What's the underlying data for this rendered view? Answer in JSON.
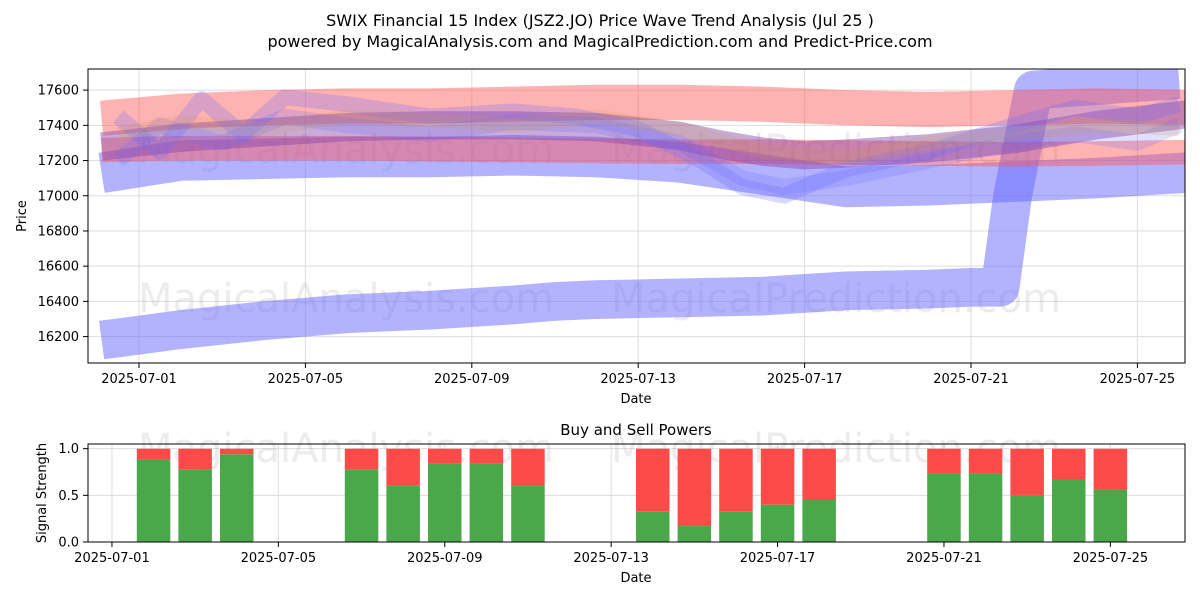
{
  "chart_data": [
    {
      "type": "area",
      "title": "SWIX Financial 15 Index (JSZ2.JO) Price Wave Trend Analysis (Jul 25 )",
      "subtitle": "powered by MagicalAnalysis.com and MagicalPrediction.com and Predict-Price.com",
      "xlabel": "Date",
      "ylabel": "Price",
      "ylim": [
        16050,
        17720
      ],
      "x_ticks": [
        "2025-07-01",
        "2025-07-05",
        "2025-07-09",
        "2025-07-13",
        "2025-07-17",
        "2025-07-21",
        "2025-07-25"
      ],
      "y_ticks": [
        16200,
        16400,
        16600,
        16800,
        17000,
        17200,
        17400,
        17600
      ],
      "watermarks": [
        "MagicalAnalysis.com",
        "MagicalPrediction.com"
      ],
      "bands": [
        {
          "name": "low wave",
          "color": "#6666ff",
          "alpha": 0.5,
          "x": [
            -0.9,
            1,
            3,
            5,
            7,
            9,
            10,
            11,
            13,
            15,
            17,
            19,
            20,
            20.7,
            21,
            21.5,
            25
          ],
          "center": [
            16180,
            16240,
            16290,
            16330,
            16350,
            16380,
            16400,
            16410,
            16420,
            16430,
            16460,
            16470,
            16480,
            16480,
            17000,
            17600,
            17660
          ],
          "width": 220
        },
        {
          "name": "mid blue wave",
          "color": "#6666ff",
          "alpha": 0.5,
          "x": [
            -0.9,
            1,
            3,
            5,
            7,
            9,
            11,
            13,
            15,
            17,
            19,
            21,
            23,
            25.8
          ],
          "center": [
            17130,
            17200,
            17210,
            17220,
            17220,
            17230,
            17220,
            17190,
            17120,
            17050,
            17060,
            17080,
            17100,
            17140
          ],
          "width": 230
        },
        {
          "name": "red wave upper",
          "color": "#ff5555",
          "alpha": 0.45,
          "x": [
            -0.9,
            1,
            3,
            5,
            7,
            9,
            11,
            13,
            15,
            17,
            19,
            21,
            23,
            25.8
          ],
          "center": [
            17440,
            17480,
            17500,
            17510,
            17510,
            17520,
            17530,
            17530,
            17520,
            17500,
            17490,
            17500,
            17510,
            17500
          ],
          "width": 200
        },
        {
          "name": "red wave lower",
          "color": "#ff5555",
          "alpha": 0.45,
          "x": [
            -0.9,
            1,
            3,
            5,
            7,
            9,
            11,
            13,
            15,
            17,
            19,
            21,
            23,
            25.8
          ],
          "center": [
            17260,
            17270,
            17270,
            17270,
            17265,
            17260,
            17255,
            17250,
            17250,
            17245,
            17240,
            17235,
            17240,
            17250
          ],
          "width": 140
        },
        {
          "name": "purple price path",
          "color": "#8844aa",
          "alpha": 0.45,
          "x": [
            -0.9,
            1,
            3,
            5,
            7,
            9,
            11,
            13,
            14,
            15,
            16,
            17,
            19,
            21,
            23,
            25.8
          ],
          "center": [
            17280,
            17330,
            17360,
            17390,
            17400,
            17400,
            17390,
            17340,
            17290,
            17250,
            17230,
            17240,
            17270,
            17320,
            17400,
            17480
          ],
          "width": 160
        },
        {
          "name": "blue swirl a",
          "color": "#6666ff",
          "alpha": 0.25,
          "x": [
            -0.5,
            0.5,
            1.5,
            2.5,
            3.5,
            5,
            7,
            9,
            10.5,
            12,
            13.5,
            14.5,
            15.5,
            17,
            19,
            21,
            22.5,
            24,
            25
          ],
          "center": [
            17450,
            17250,
            17550,
            17350,
            17560,
            17520,
            17450,
            17480,
            17450,
            17380,
            17200,
            17050,
            17000,
            17150,
            17250,
            17400,
            17500,
            17450,
            17520
          ],
          "width": 90
        },
        {
          "name": "blue swirl b",
          "color": "#6666ff",
          "alpha": 0.2,
          "x": [
            -0.5,
            0.5,
            2,
            3.5,
            5,
            7,
            9,
            11,
            13,
            14.5,
            15.5,
            17,
            19,
            21,
            22.5,
            24,
            25
          ],
          "center": [
            17200,
            17400,
            17300,
            17450,
            17400,
            17350,
            17420,
            17400,
            17300,
            17100,
            17050,
            17100,
            17200,
            17300,
            17350,
            17300,
            17400
          ],
          "width": 90
        },
        {
          "name": "orange swirl",
          "color": "#cc9944",
          "alpha": 0.18,
          "x": [
            -0.5,
            1,
            3,
            5,
            7,
            9,
            11,
            13,
            15,
            17,
            19,
            21,
            23,
            25
          ],
          "center": [
            17350,
            17420,
            17380,
            17450,
            17430,
            17400,
            17450,
            17380,
            17250,
            17220,
            17300,
            17350,
            17400,
            17380
          ],
          "width": 80
        }
      ]
    },
    {
      "type": "bar",
      "title": "Buy and Sell Powers",
      "xlabel": "Date",
      "ylabel": "Signal Strength",
      "ylim": [
        0,
        1.05
      ],
      "x_ticks": [
        "2025-07-01",
        "2025-07-05",
        "2025-07-09",
        "2025-07-13",
        "2025-07-17",
        "2025-07-21",
        "2025-07-25"
      ],
      "y_ticks": [
        "0.0",
        "0.5",
        "1.0"
      ],
      "watermarks": [
        "MagicalAnalysis.com",
        "MagicalPrediction.com"
      ],
      "buy_color": "#4aa84a",
      "sell_color": "#ff4a4a",
      "bars": [
        {
          "day": 1,
          "buy": 0.88
        },
        {
          "day": 2,
          "buy": 0.78
        },
        {
          "day": 3,
          "buy": 0.94
        },
        {
          "day": 6,
          "buy": 0.78
        },
        {
          "day": 7,
          "buy": 0.61
        },
        {
          "day": 8,
          "buy": 0.84
        },
        {
          "day": 9,
          "buy": 0.84
        },
        {
          "day": 10,
          "buy": 0.61
        },
        {
          "day": 13,
          "buy": 0.33
        },
        {
          "day": 14,
          "buy": 0.17
        },
        {
          "day": 15,
          "buy": 0.33
        },
        {
          "day": 16,
          "buy": 0.4
        },
        {
          "day": 17,
          "buy": 0.45
        },
        {
          "day": 20,
          "buy": 0.73
        },
        {
          "day": 21,
          "buy": 0.73
        },
        {
          "day": 22,
          "buy": 0.5
        },
        {
          "day": 23,
          "buy": 0.67
        },
        {
          "day": 24,
          "buy": 0.56
        }
      ]
    }
  ]
}
